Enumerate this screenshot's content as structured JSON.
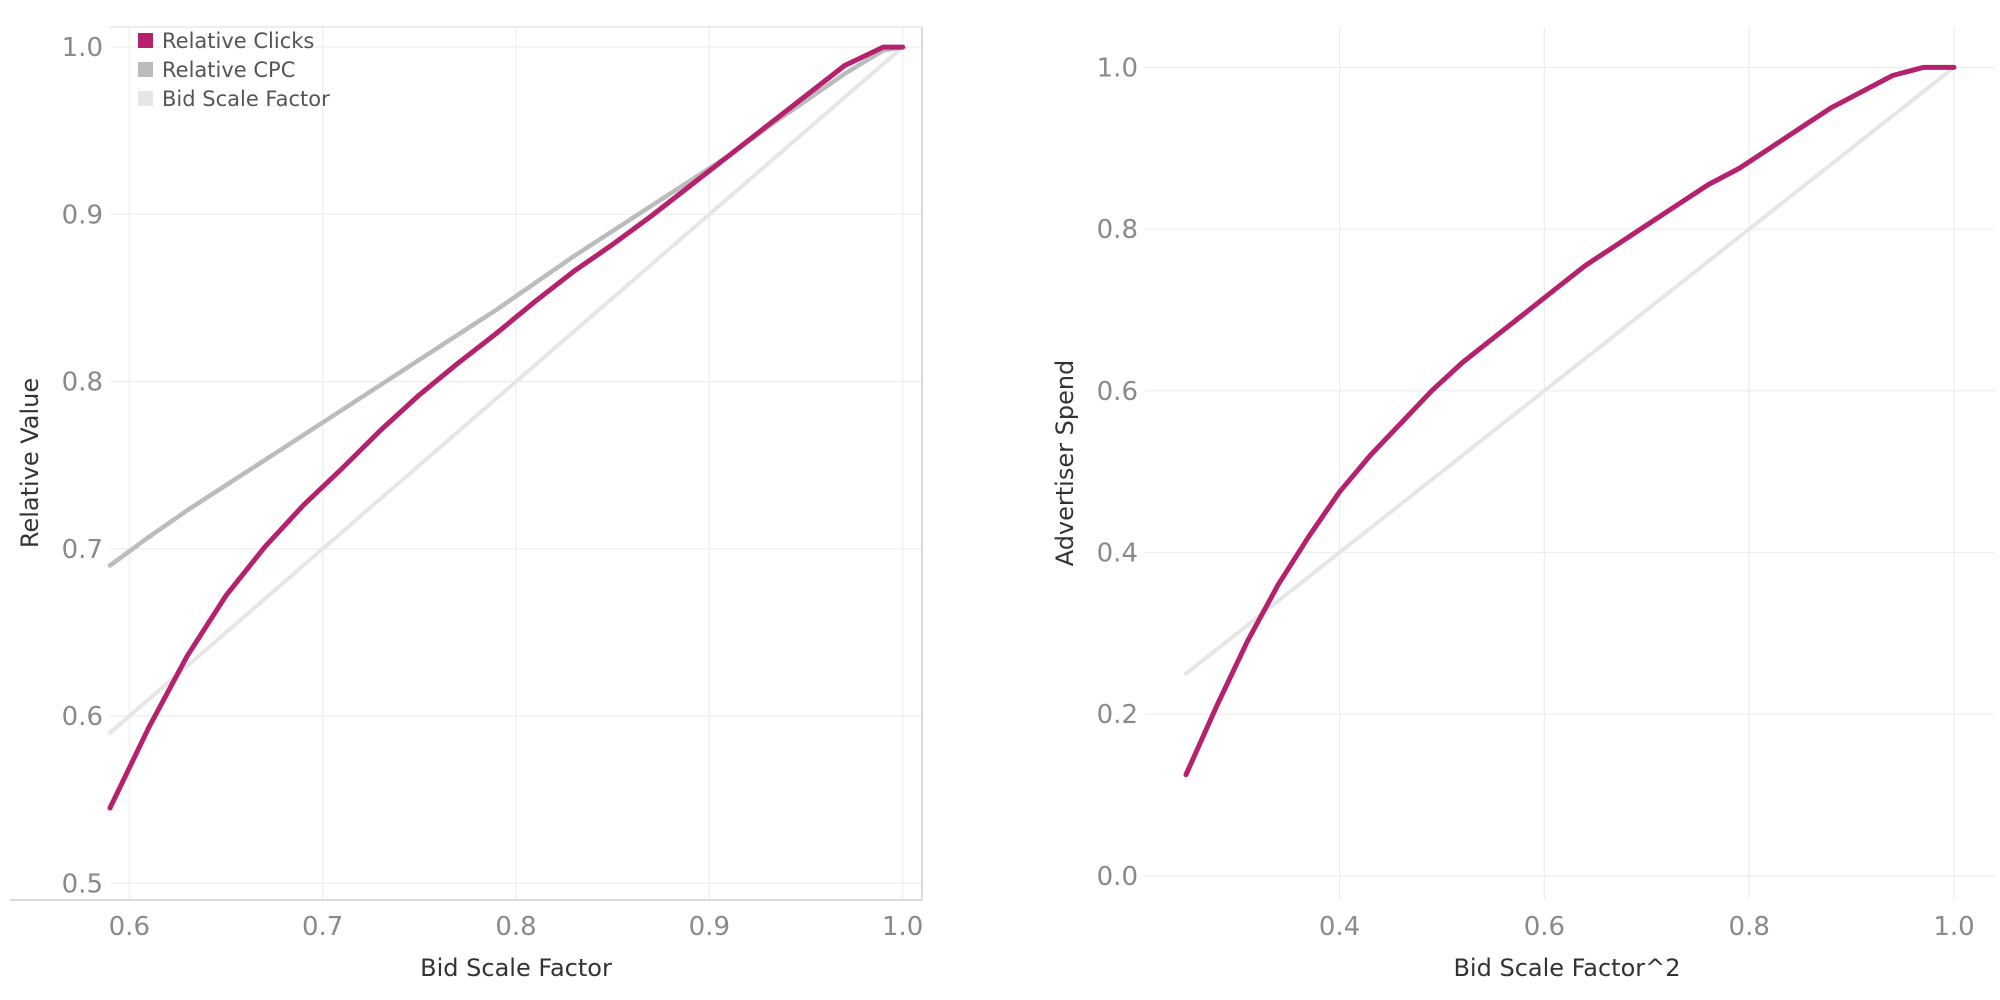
{
  "chart_data": [
    {
      "type": "line",
      "xlabel": "Bid Scale Factor",
      "ylabel": "Relative Value",
      "xlim": [
        0.59,
        1.01
      ],
      "ylim": [
        0.49,
        1.012
      ],
      "x_ticks": [
        0.6,
        0.7,
        0.8,
        0.9,
        1.0
      ],
      "y_ticks": [
        0.5,
        0.6,
        0.7,
        0.8,
        0.9,
        1.0
      ],
      "x_tick_labels": [
        "0.6",
        "0.7",
        "0.8",
        "0.9",
        "1.0"
      ],
      "y_tick_labels": [
        "0.5",
        "0.6",
        "0.7",
        "0.8",
        "0.9",
        "1.0"
      ],
      "grid": true,
      "legend": "top-left",
      "series": [
        {
          "name": "Relative Clicks",
          "color": "#b5216d",
          "x": [
            0.59,
            0.61,
            0.63,
            0.65,
            0.67,
            0.69,
            0.71,
            0.73,
            0.75,
            0.77,
            0.79,
            0.81,
            0.83,
            0.85,
            0.87,
            0.89,
            0.91,
            0.93,
            0.95,
            0.97,
            0.99,
            1.0
          ],
          "y": [
            0.545,
            0.593,
            0.636,
            0.672,
            0.701,
            0.726,
            0.748,
            0.771,
            0.792,
            0.811,
            0.829,
            0.848,
            0.866,
            0.882,
            0.899,
            0.917,
            0.935,
            0.953,
            0.971,
            0.989,
            1.0,
            1.0
          ]
        },
        {
          "name": "Relative CPC",
          "color": "#bcbcbc",
          "x": [
            0.59,
            0.61,
            0.63,
            0.65,
            0.67,
            0.69,
            0.71,
            0.73,
            0.75,
            0.77,
            0.79,
            0.81,
            0.83,
            0.85,
            0.87,
            0.89,
            0.91,
            0.93,
            0.95,
            0.97,
            0.99,
            1.0
          ],
          "y": [
            0.69,
            0.707,
            0.723,
            0.738,
            0.753,
            0.768,
            0.783,
            0.798,
            0.813,
            0.828,
            0.843,
            0.859,
            0.875,
            0.89,
            0.905,
            0.92,
            0.935,
            0.952,
            0.968,
            0.984,
            0.998,
            1.0
          ]
        },
        {
          "name": "Bid Scale Factor",
          "color": "#e6e6e6",
          "x": [
            0.59,
            1.0
          ],
          "y": [
            0.59,
            1.0
          ]
        }
      ]
    },
    {
      "type": "line",
      "xlabel": "Bid Scale Factor^2",
      "ylabel": "Advertiser Spend",
      "xlim": [
        0.21,
        1.04
      ],
      "ylim": [
        -0.03,
        1.05
      ],
      "x_ticks": [
        0.4,
        0.6,
        0.8,
        1.0
      ],
      "y_ticks": [
        0.0,
        0.2,
        0.4,
        0.6,
        0.8,
        1.0
      ],
      "x_tick_labels": [
        "0.4",
        "0.6",
        "0.8",
        "1.0"
      ],
      "y_tick_labels": [
        "0.0",
        "0.2",
        "0.4",
        "0.6",
        "0.8",
        "1.0"
      ],
      "grid": true,
      "series": [
        {
          "color": "#b5216d",
          "x": [
            0.25,
            0.28,
            0.31,
            0.34,
            0.37,
            0.4,
            0.43,
            0.46,
            0.49,
            0.52,
            0.55,
            0.58,
            0.61,
            0.64,
            0.67,
            0.7,
            0.73,
            0.76,
            0.79,
            0.82,
            0.85,
            0.88,
            0.91,
            0.94,
            0.97,
            1.0
          ],
          "y": [
            0.125,
            0.21,
            0.29,
            0.36,
            0.42,
            0.475,
            0.52,
            0.56,
            0.6,
            0.635,
            0.665,
            0.695,
            0.725,
            0.755,
            0.78,
            0.805,
            0.83,
            0.855,
            0.875,
            0.9,
            0.925,
            0.95,
            0.97,
            0.99,
            1.0,
            1.0
          ]
        },
        {
          "color": "#e6e6e6",
          "x": [
            0.25,
            1.0
          ],
          "y": [
            0.25,
            1.0
          ]
        }
      ]
    }
  ]
}
